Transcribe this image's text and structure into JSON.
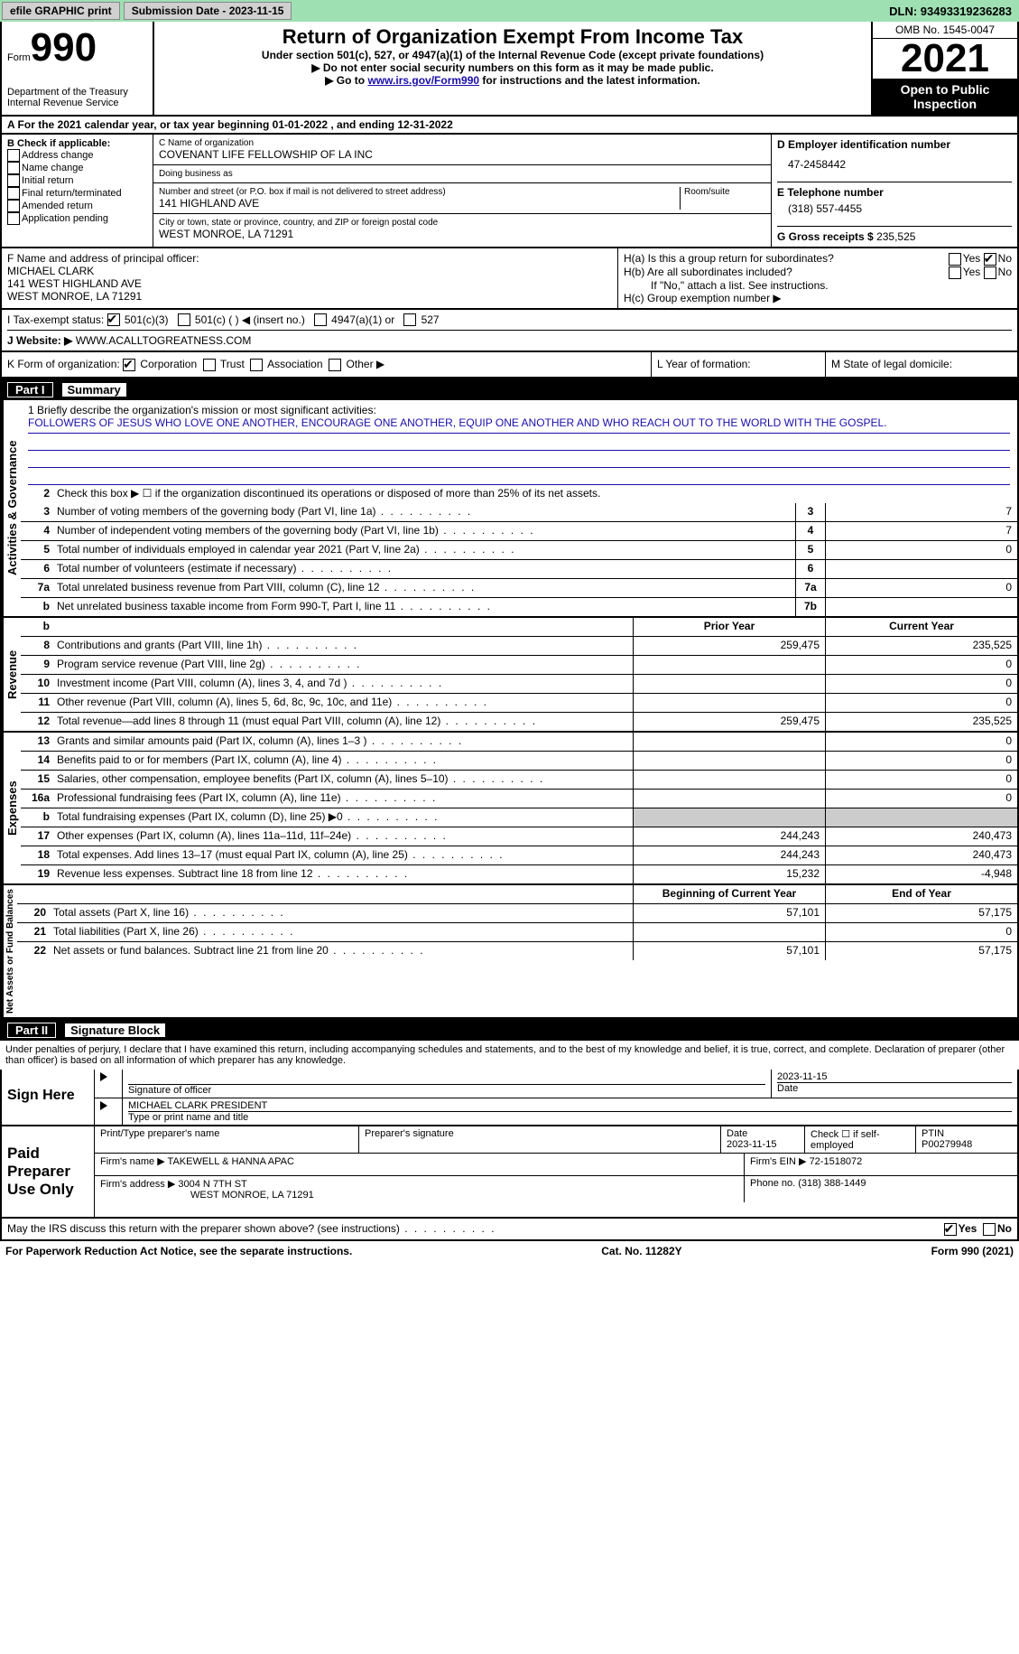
{
  "topbar": {
    "efile": "efile GRAPHIC print",
    "submission": "Submission Date - 2023-11-15",
    "dln": "DLN: 93493319236283"
  },
  "header": {
    "form_word": "Form",
    "form_num": "990",
    "dept": "Department of the Treasury Internal Revenue Service",
    "title": "Return of Organization Exempt From Income Tax",
    "subtitle": "Under section 501(c), 527, or 4947(a)(1) of the Internal Revenue Code (except private foundations)",
    "note1": "▶ Do not enter social security numbers on this form as it may be made public.",
    "note2_pre": "▶ Go to ",
    "note2_link": "www.irs.gov/Form990",
    "note2_post": " for instructions and the latest information.",
    "omb": "OMB No. 1545-0047",
    "year": "2021",
    "open": "Open to Public Inspection"
  },
  "a": {
    "line": "A For the 2021 calendar year, or tax year beginning 01-01-2022   , and ending 12-31-2022"
  },
  "b": {
    "title": "B Check if applicable:",
    "opts": [
      "Address change",
      "Name change",
      "Initial return",
      "Final return/terminated",
      "Amended return",
      "Application pending"
    ]
  },
  "c": {
    "name_label": "C Name of organization",
    "name": "COVENANT LIFE FELLOWSHIP OF LA INC",
    "dba_label": "Doing business as",
    "dba": "",
    "addr_label": "Number and street (or P.O. box if mail is not delivered to street address)",
    "room_label": "Room/suite",
    "addr": "141 HIGHLAND AVE",
    "city_label": "City or town, state or province, country, and ZIP or foreign postal code",
    "city": "WEST MONROE, LA  71291"
  },
  "d": {
    "label": "D Employer identification number",
    "val": "47-2458442"
  },
  "e": {
    "label": "E Telephone number",
    "val": "(318) 557-4455"
  },
  "g": {
    "label": "G Gross receipts $",
    "val": "235,525"
  },
  "f": {
    "label": "F  Name and address of principal officer:",
    "name": "MICHAEL CLARK",
    "addr1": "141 WEST HIGHLAND AVE",
    "addr2": "WEST MONROE, LA  71291"
  },
  "h": {
    "a": "H(a)  Is this a group return for subordinates?",
    "b": "H(b)  Are all subordinates included?",
    "b_note": "If \"No,\" attach a list. See instructions.",
    "c": "H(c)  Group exemption number ▶"
  },
  "i": {
    "label": "I   Tax-exempt status:",
    "opts": [
      "501(c)(3)",
      "501(c) (  ) ◀ (insert no.)",
      "4947(a)(1) or",
      "527"
    ]
  },
  "j": {
    "label": "J   Website: ▶",
    "val": "WWW.ACALLTOGREATNESS.COM"
  },
  "k": {
    "label": "K Form of organization:",
    "opts": [
      "Corporation",
      "Trust",
      "Association",
      "Other ▶"
    ]
  },
  "l": {
    "label": "L Year of formation:"
  },
  "m": {
    "label": "M State of legal domicile:"
  },
  "part1": {
    "num": "Part I",
    "title": "Summary"
  },
  "summary": {
    "line1_label": "1  Briefly describe the organization's mission or most significant activities:",
    "mission": "FOLLOWERS OF JESUS WHO LOVE ONE ANOTHER, ENCOURAGE ONE ANOTHER, EQUIP ONE ANOTHER AND WHO REACH OUT TO THE WORLD WITH THE GOSPEL.",
    "line2": "Check this box ▶ ☐ if the organization discontinued its operations or disposed of more than 25% of its net assets.",
    "lines_gov": [
      {
        "n": "3",
        "txt": "Number of voting members of the governing body (Part VI, line 1a)",
        "box": "3",
        "val": "7"
      },
      {
        "n": "4",
        "txt": "Number of independent voting members of the governing body (Part VI, line 1b)",
        "box": "4",
        "val": "7"
      },
      {
        "n": "5",
        "txt": "Total number of individuals employed in calendar year 2021 (Part V, line 2a)",
        "box": "5",
        "val": "0"
      },
      {
        "n": "6",
        "txt": "Total number of volunteers (estimate if necessary)",
        "box": "6",
        "val": ""
      },
      {
        "n": "7a",
        "txt": "Total unrelated business revenue from Part VIII, column (C), line 12",
        "box": "7a",
        "val": "0"
      },
      {
        "n": "b",
        "txt": "Net unrelated business taxable income from Form 990-T, Part I, line 11",
        "box": "7b",
        "val": ""
      }
    ],
    "col_headers": {
      "prior": "Prior Year",
      "current": "Current Year"
    },
    "revenue": [
      {
        "n": "8",
        "txt": "Contributions and grants (Part VIII, line 1h)",
        "p": "259,475",
        "c": "235,525"
      },
      {
        "n": "9",
        "txt": "Program service revenue (Part VIII, line 2g)",
        "p": "",
        "c": "0"
      },
      {
        "n": "10",
        "txt": "Investment income (Part VIII, column (A), lines 3, 4, and 7d )",
        "p": "",
        "c": "0"
      },
      {
        "n": "11",
        "txt": "Other revenue (Part VIII, column (A), lines 5, 6d, 8c, 9c, 10c, and 11e)",
        "p": "",
        "c": "0"
      },
      {
        "n": "12",
        "txt": "Total revenue—add lines 8 through 11 (must equal Part VIII, column (A), line 12)",
        "p": "259,475",
        "c": "235,525"
      }
    ],
    "expenses": [
      {
        "n": "13",
        "txt": "Grants and similar amounts paid (Part IX, column (A), lines 1–3 )",
        "p": "",
        "c": "0"
      },
      {
        "n": "14",
        "txt": "Benefits paid to or for members (Part IX, column (A), line 4)",
        "p": "",
        "c": "0"
      },
      {
        "n": "15",
        "txt": "Salaries, other compensation, employee benefits (Part IX, column (A), lines 5–10)",
        "p": "",
        "c": "0"
      },
      {
        "n": "16a",
        "txt": "Professional fundraising fees (Part IX, column (A), line 11e)",
        "p": "",
        "c": "0"
      },
      {
        "n": "b",
        "txt": "Total fundraising expenses (Part IX, column (D), line 25) ▶0",
        "p": "grey",
        "c": "grey"
      },
      {
        "n": "17",
        "txt": "Other expenses (Part IX, column (A), lines 11a–11d, 11f–24e)",
        "p": "244,243",
        "c": "240,473"
      },
      {
        "n": "18",
        "txt": "Total expenses. Add lines 13–17 (must equal Part IX, column (A), line 25)",
        "p": "244,243",
        "c": "240,473"
      },
      {
        "n": "19",
        "txt": "Revenue less expenses. Subtract line 18 from line 12",
        "p": "15,232",
        "c": "-4,948"
      }
    ],
    "net_headers": {
      "begin": "Beginning of Current Year",
      "end": "End of Year"
    },
    "net": [
      {
        "n": "20",
        "txt": "Total assets (Part X, line 16)",
        "p": "57,101",
        "c": "57,175"
      },
      {
        "n": "21",
        "txt": "Total liabilities (Part X, line 26)",
        "p": "",
        "c": "0"
      },
      {
        "n": "22",
        "txt": "Net assets or fund balances. Subtract line 21 from line 20",
        "p": "57,101",
        "c": "57,175"
      }
    ]
  },
  "vtabs": {
    "gov": "Activities & Governance",
    "rev": "Revenue",
    "exp": "Expenses",
    "net": "Net Assets or Fund Balances"
  },
  "part2": {
    "num": "Part II",
    "title": "Signature Block"
  },
  "sig": {
    "declaration": "Under penalties of perjury, I declare that I have examined this return, including accompanying schedules and statements, and to the best of my knowledge and belief, it is true, correct, and complete. Declaration of preparer (other than officer) is based on all information of which preparer has any knowledge.",
    "here": "Sign Here",
    "sig_officer": "Signature of officer",
    "date1": "2023-11-15",
    "name_title": "MICHAEL CLARK  PRESIDENT",
    "type_label": "Type or print name and title",
    "paid": "Paid Preparer Use Only",
    "prep_name_label": "Print/Type preparer's name",
    "prep_sig_label": "Preparer's signature",
    "date_label": "Date",
    "date2": "2023-11-15",
    "check_self": "Check ☐ if self-employed",
    "ptin_label": "PTIN",
    "ptin": "P00279948",
    "firm_name_label": "Firm's name   ▶",
    "firm_name": "TAKEWELL & HANNA APAC",
    "firm_ein_label": "Firm's EIN ▶",
    "firm_ein": "72-1518072",
    "firm_addr_label": "Firm's address ▶",
    "firm_addr": "3004 N 7TH ST",
    "firm_city": "WEST MONROE, LA  71291",
    "phone_label": "Phone no.",
    "phone": "(318) 388-1449",
    "may_irs": "May the IRS discuss this return with the preparer shown above? (see instructions)",
    "yes": "Yes",
    "no": "No"
  },
  "footer": {
    "pra": "For Paperwork Reduction Act Notice, see the separate instructions.",
    "cat": "Cat. No. 11282Y",
    "form": "Form 990 (2021)"
  }
}
